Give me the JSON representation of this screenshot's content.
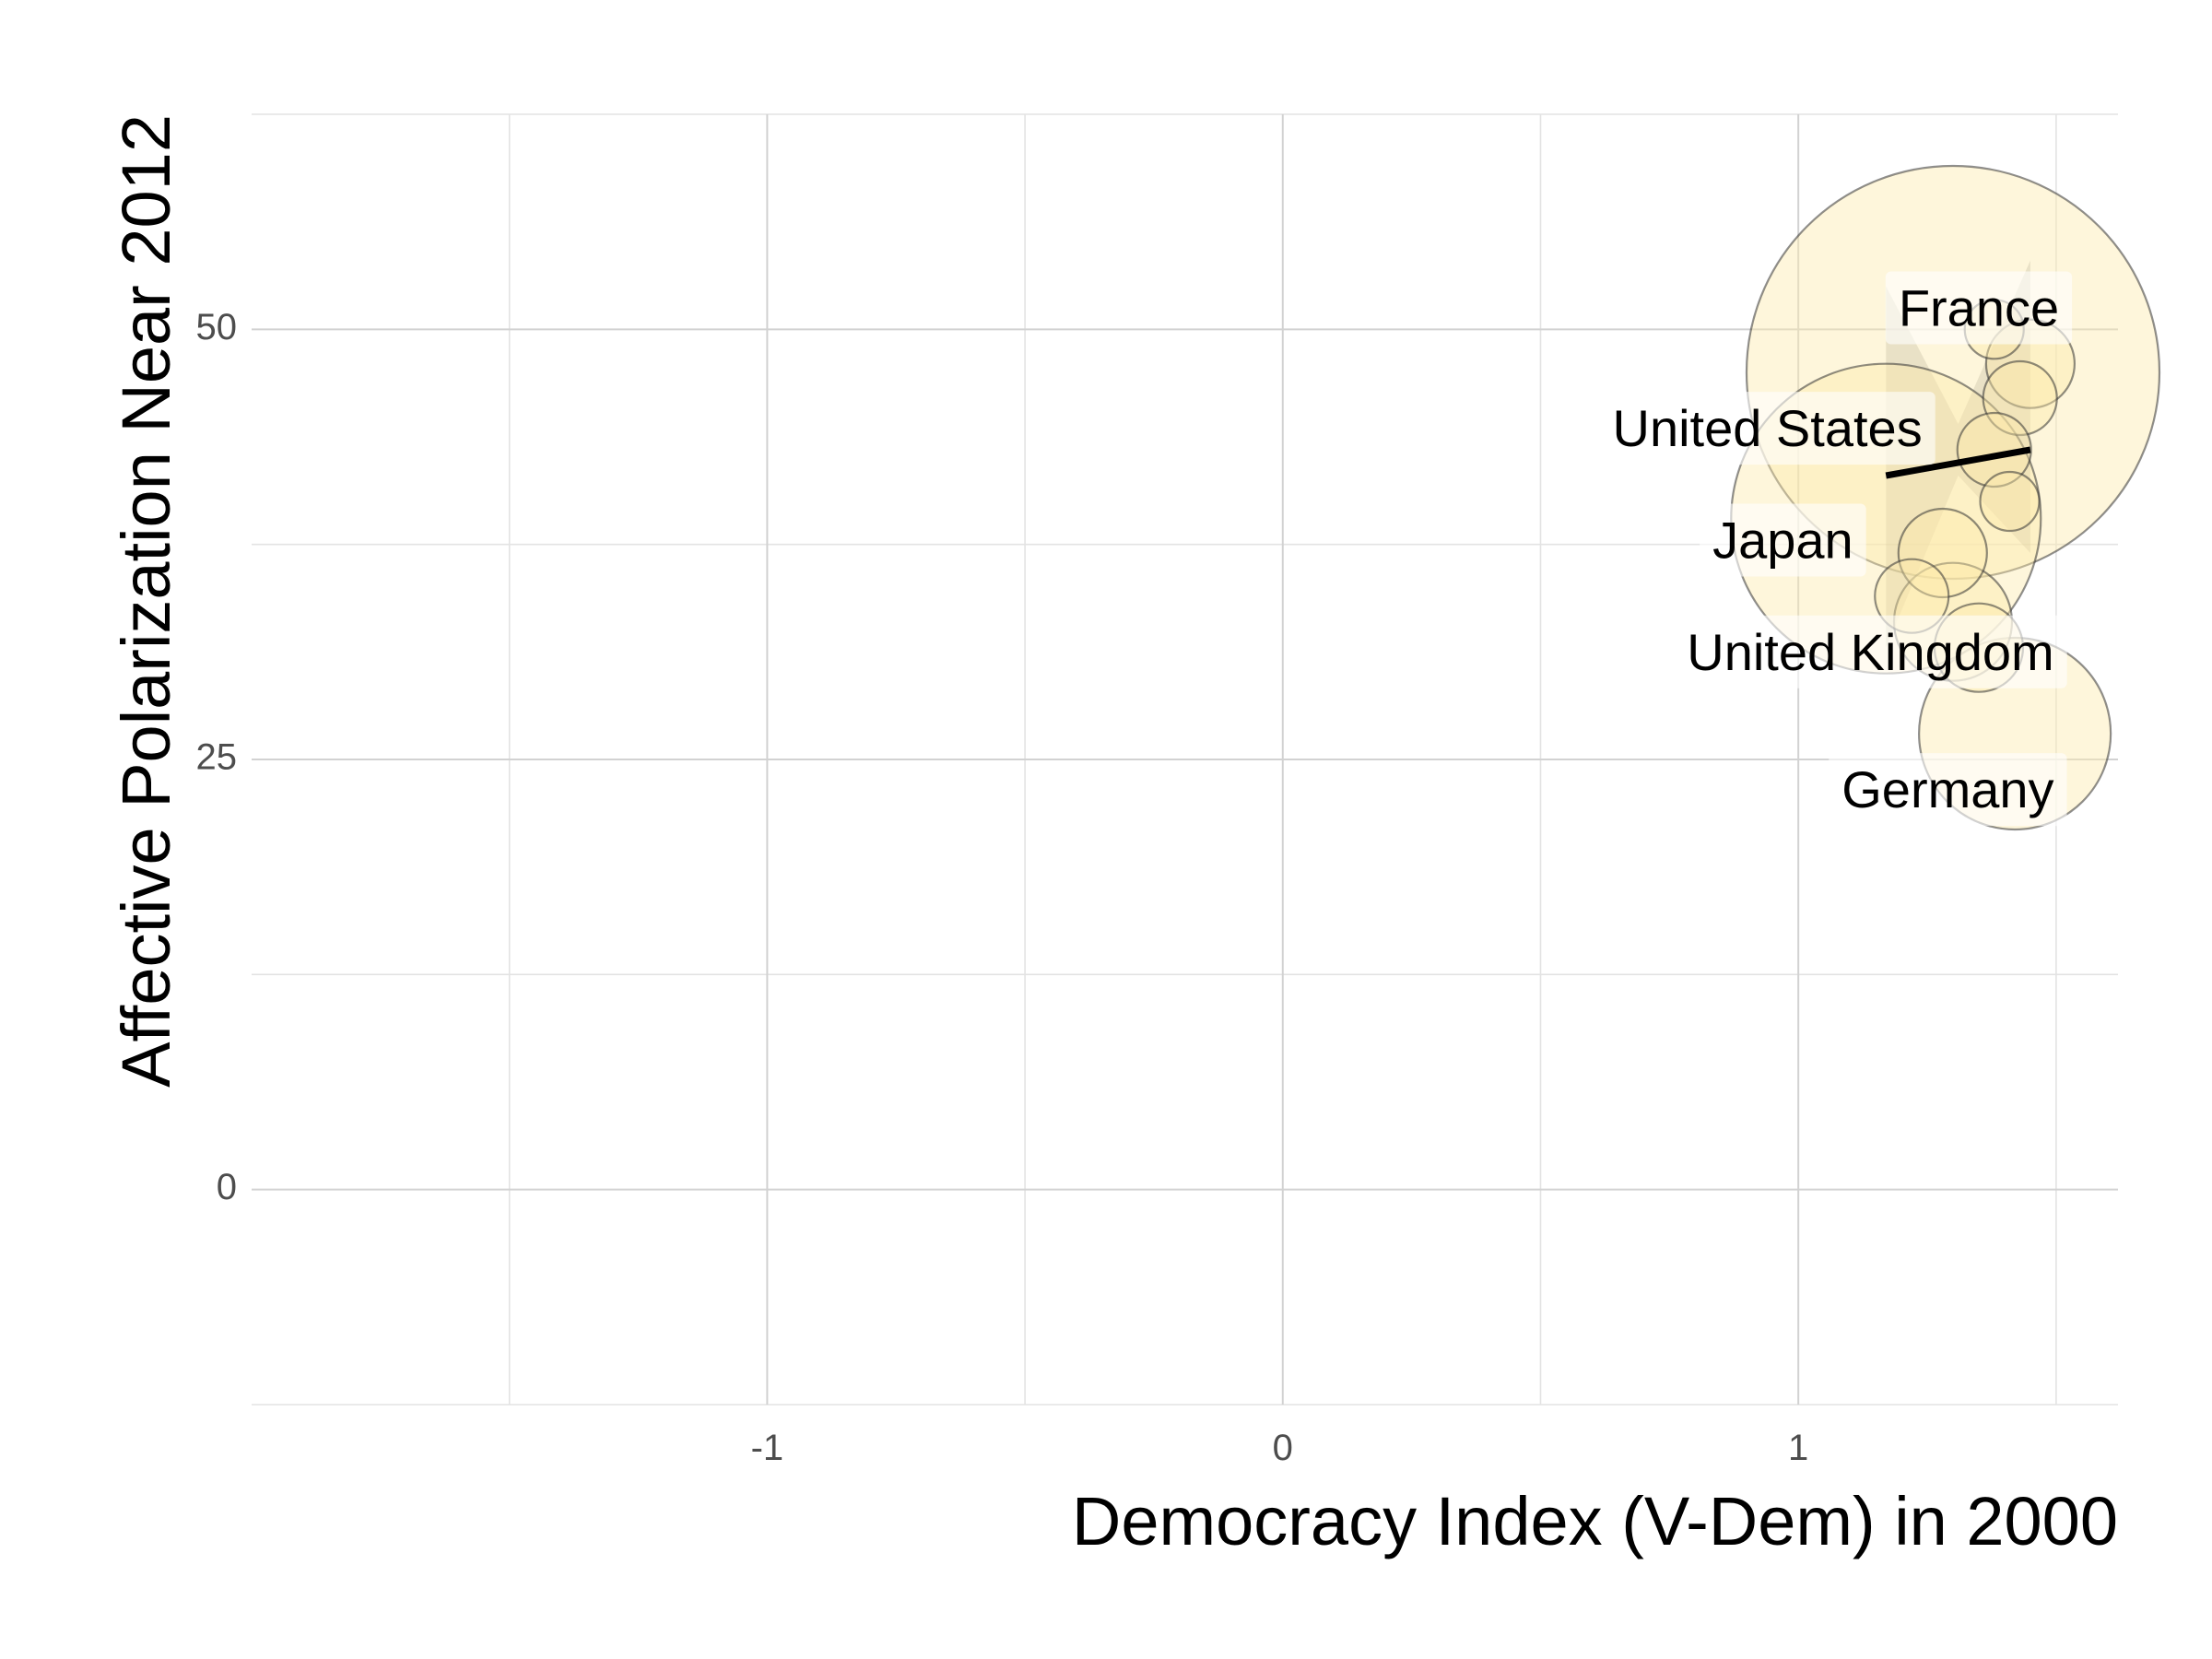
{
  "chart_data": {
    "type": "scatter",
    "xlabel": "Democracy Index (V-Dem) in 2000",
    "ylabel": "Affective Polarization Near 2012",
    "xlim": [
      -2.0,
      1.62
    ],
    "ylim": [
      -12.5,
      62.5
    ],
    "x_ticks": [
      -1,
      0,
      1
    ],
    "x_tick_labels": [
      "-1",
      "0",
      "1"
    ],
    "y_ticks": [
      0,
      25,
      50
    ],
    "y_tick_labels": [
      "0",
      "25",
      "50"
    ],
    "x_minor_grid": [
      -1.5,
      -0.5,
      0.5,
      1.5
    ],
    "y_minor_grid": [
      -12.5,
      12.5,
      37.5,
      62.5
    ],
    "grid": true,
    "legend": "none",
    "point_fill": "#fde9a9",
    "point_stroke": "#333333",
    "labeled_points": [
      {
        "name": "France",
        "x": 1.45,
        "y": 48.0,
        "size": 6,
        "label_x": 1.35,
        "label_y": 51.0
      },
      {
        "name": "United States",
        "x": 1.3,
        "y": 47.5,
        "size": 28,
        "label_x": 0.94,
        "label_y": 44.0
      },
      {
        "name": "Japan",
        "x": 1.17,
        "y": 39.0,
        "size": 21,
        "label_x": 0.97,
        "label_y": 37.5
      },
      {
        "name": "United Kingdom",
        "x": 1.3,
        "y": 33.0,
        "size": 8,
        "label_x": 1.14,
        "label_y": 31.0
      },
      {
        "name": "Germany",
        "x": 1.42,
        "y": 26.5,
        "size": 13,
        "label_x": 1.29,
        "label_y": 23.0
      }
    ],
    "other_points": [
      {
        "x": 1.38,
        "y": 50.0,
        "size": 4
      },
      {
        "x": 1.43,
        "y": 46.0,
        "size": 5
      },
      {
        "x": 1.38,
        "y": 43.0,
        "size": 5
      },
      {
        "x": 1.41,
        "y": 40.0,
        "size": 4
      },
      {
        "x": 1.28,
        "y": 37.0,
        "size": 6
      },
      {
        "x": 1.22,
        "y": 34.5,
        "size": 5
      },
      {
        "x": 1.35,
        "y": 31.5,
        "size": 6
      }
    ],
    "trend_line": {
      "x": [
        1.17,
        1.45
      ],
      "y": [
        41.5,
        43.0
      ]
    },
    "confidence_band": {
      "x": [
        1.17,
        1.31,
        1.45
      ],
      "lower": [
        31.5,
        41.5,
        37.0
      ],
      "upper": [
        52.5,
        44.5,
        54.0
      ]
    }
  }
}
